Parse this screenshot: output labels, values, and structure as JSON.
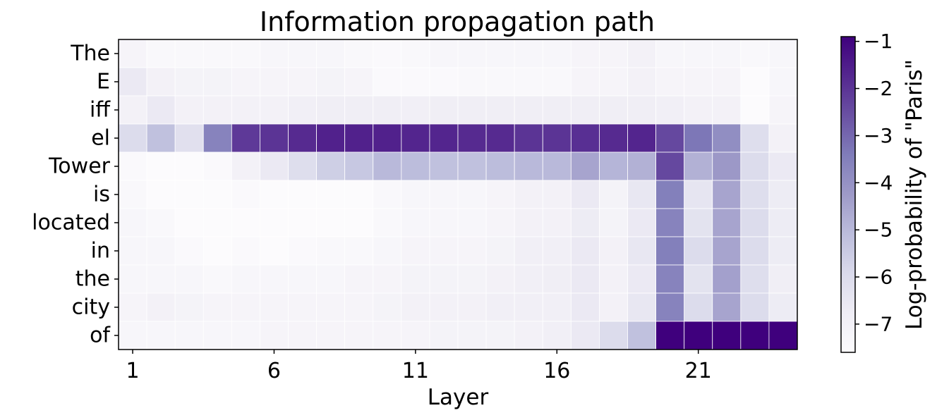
{
  "chart_data": {
    "type": "heatmap",
    "title": "Information propagation path",
    "xlabel": "Layer",
    "ylabel": "",
    "x_ticks": [
      "1",
      "6",
      "11",
      "16",
      "21"
    ],
    "x_tick_layers": [
      1,
      6,
      11,
      16,
      21
    ],
    "x": [
      1,
      2,
      3,
      4,
      5,
      6,
      7,
      8,
      9,
      10,
      11,
      12,
      13,
      14,
      15,
      16,
      17,
      18,
      19,
      20,
      21,
      22,
      23,
      24
    ],
    "y": [
      "The",
      "E",
      "iff",
      "el",
      "Tower",
      "is",
      "located",
      "in",
      "the",
      "city",
      "of"
    ],
    "values": [
      [
        -7.2,
        -7.4,
        -7.4,
        -7.4,
        -7.4,
        -7.3,
        -7.3,
        -7.3,
        -7.4,
        -7.5,
        -7.4,
        -7.3,
        -7.3,
        -7.3,
        -7.3,
        -7.3,
        -7.2,
        -7.2,
        -7.0,
        -7.3,
        -7.3,
        -7.3,
        -7.4,
        -7.3
      ],
      [
        -6.6,
        -7.0,
        -7.1,
        -7.1,
        -7.2,
        -7.2,
        -7.2,
        -7.1,
        -7.2,
        -7.5,
        -7.5,
        -7.5,
        -7.4,
        -7.4,
        -7.4,
        -7.4,
        -7.2,
        -7.2,
        -7.0,
        -7.2,
        -7.2,
        -7.2,
        -7.6,
        -7.3
      ],
      [
        -7.0,
        -6.6,
        -7.0,
        -7.0,
        -7.0,
        -7.0,
        -6.9,
        -6.8,
        -6.8,
        -6.8,
        -6.9,
        -6.8,
        -6.8,
        -6.8,
        -6.8,
        -6.8,
        -6.8,
        -6.8,
        -6.8,
        -6.9,
        -7.0,
        -7.0,
        -7.7,
        -7.2
      ],
      [
        -6.0,
        -5.2,
        -6.2,
        -3.6,
        -2.1,
        -2.0,
        -1.8,
        -1.6,
        -1.6,
        -1.6,
        -1.7,
        -1.7,
        -1.8,
        -1.8,
        -2.0,
        -2.0,
        -1.9,
        -1.8,
        -1.7,
        -2.4,
        -3.3,
        -3.9,
        -6.1,
        -7.0
      ],
      [
        -7.5,
        -7.6,
        -7.7,
        -7.5,
        -7.0,
        -6.6,
        -6.1,
        -5.6,
        -5.4,
        -5.0,
        -5.1,
        -5.2,
        -5.2,
        -5.1,
        -5.0,
        -5.0,
        -4.5,
        -4.9,
        -4.8,
        -2.4,
        -4.8,
        -4.2,
        -6.0,
        -6.6
      ],
      [
        -7.4,
        -7.6,
        -7.6,
        -7.8,
        -7.5,
        -7.7,
        -7.7,
        -7.6,
        -7.6,
        -7.4,
        -7.3,
        -7.3,
        -7.3,
        -7.2,
        -7.0,
        -7.0,
        -6.6,
        -7.1,
        -6.5,
        -3.5,
        -6.4,
        -4.5,
        -6.1,
        -6.7
      ],
      [
        -7.3,
        -7.4,
        -7.6,
        -7.8,
        -7.6,
        -7.7,
        -7.7,
        -7.6,
        -7.6,
        -7.4,
        -7.3,
        -7.3,
        -7.3,
        -7.2,
        -7.0,
        -7.0,
        -6.7,
        -7.1,
        -6.6,
        -3.6,
        -6.3,
        -4.5,
        -6.0,
        -6.7
      ],
      [
        -7.3,
        -7.3,
        -7.5,
        -7.6,
        -7.5,
        -7.6,
        -7.5,
        -7.4,
        -7.4,
        -7.3,
        -7.2,
        -7.2,
        -7.2,
        -7.1,
        -6.9,
        -6.9,
        -6.6,
        -7.0,
        -6.5,
        -3.5,
        -6.0,
        -4.5,
        -6.0,
        -6.7
      ],
      [
        -7.3,
        -7.3,
        -7.3,
        -7.4,
        -7.3,
        -7.3,
        -7.3,
        -7.3,
        -7.2,
        -7.2,
        -7.1,
        -7.1,
        -7.1,
        -7.0,
        -6.9,
        -6.8,
        -6.6,
        -7.0,
        -6.6,
        -3.6,
        -6.3,
        -4.4,
        -6.1,
        -6.8
      ],
      [
        -7.2,
        -7.0,
        -7.1,
        -7.2,
        -7.2,
        -7.2,
        -7.2,
        -7.2,
        -7.2,
        -7.1,
        -7.0,
        -7.0,
        -7.0,
        -6.9,
        -6.9,
        -6.9,
        -6.6,
        -7.0,
        -6.5,
        -3.6,
        -6.0,
        -4.5,
        -6.0,
        -6.7
      ],
      [
        -7.3,
        -7.3,
        -7.3,
        -7.3,
        -7.3,
        -7.2,
        -7.2,
        -7.2,
        -7.2,
        -7.2,
        -7.2,
        -7.1,
        -7.1,
        -7.1,
        -7.0,
        -6.9,
        -6.6,
        -6.0,
        -5.2,
        -0.7,
        -0.5,
        -0.6,
        -0.7,
        -0.6
      ]
    ],
    "colorbar": {
      "label": "Log-probability of \"Paris\"",
      "range": [
        -7.6,
        -0.9
      ],
      "ticks": [
        -1,
        -2,
        -3,
        -4,
        -5,
        -6,
        -7
      ],
      "tick_labels": [
        "−1",
        "−2",
        "−3",
        "−4",
        "−5",
        "−6",
        "−7"
      ]
    },
    "colormap": "Purples",
    "grid": false
  }
}
